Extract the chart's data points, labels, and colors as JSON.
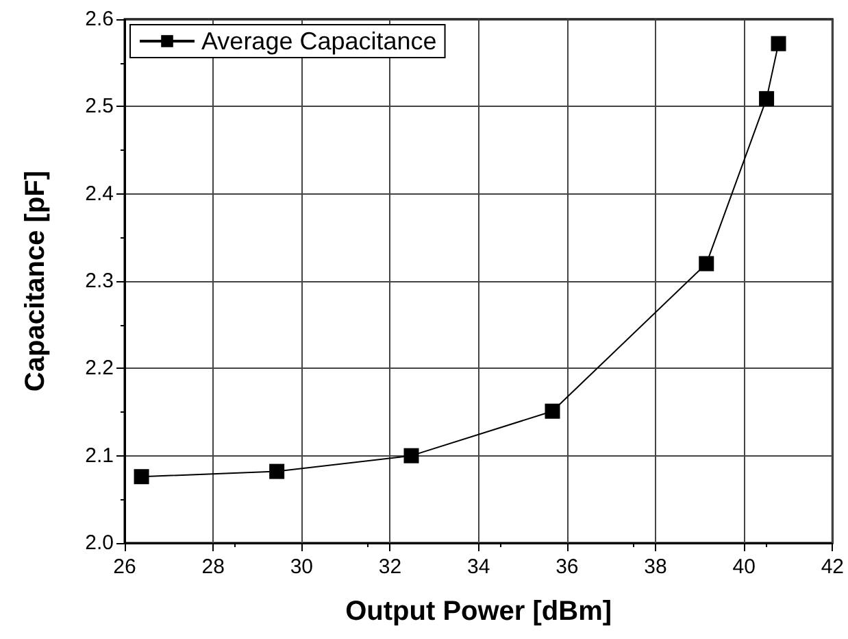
{
  "chart_data": {
    "type": "line",
    "xlabel": "Output Power [dBm]",
    "ylabel": "Capacitance [pF]",
    "x": [
      26.38,
      29.44,
      32.48,
      35.67,
      39.15,
      40.51,
      40.78
    ],
    "series": [
      {
        "name": "Average Capacitance",
        "color": "#000000",
        "values": [
          2.076,
          2.082,
          2.1,
          2.151,
          2.32,
          2.509,
          2.572
        ]
      }
    ],
    "xlim": [
      26,
      42
    ],
    "xticks": [
      26,
      28,
      30,
      32,
      34,
      36,
      38,
      40,
      42
    ],
    "ylim": [
      2.0,
      2.6
    ],
    "yticks": [
      {
        "value": 2.0,
        "label": "2.0"
      },
      {
        "value": 2.1,
        "label": "2.1"
      },
      {
        "value": 2.2,
        "label": "2.2"
      },
      {
        "value": 2.3,
        "label": "2.3"
      },
      {
        "value": 2.4,
        "label": "2.4"
      },
      {
        "value": 2.5,
        "label": "2.5"
      },
      {
        "value": 2.6,
        "label": "2.6"
      }
    ],
    "grid": true,
    "legend": "top left",
    "marker": "square",
    "line_style": "solid"
  }
}
